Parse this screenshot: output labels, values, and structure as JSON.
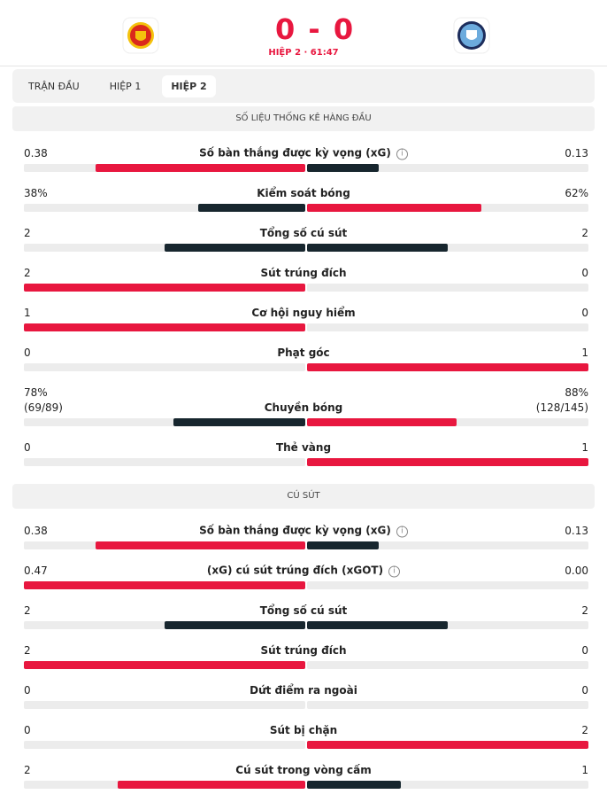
{
  "header": {
    "home_score": 0,
    "away_score": 0,
    "status": "HIỆP 2 · 61:47"
  },
  "tabs": [
    "TRẬN ĐẦU",
    "HIỆP 1",
    "HIỆP 2"
  ],
  "active_tab": 2,
  "colors": {
    "home": "#e8173f",
    "away": "#17262e",
    "track": "#ececec"
  },
  "sections": [
    {
      "title": "SỐ LIỆU THỐNG KÊ HÀNG ĐẦU",
      "stats": [
        {
          "label": "Số bàn thắng được kỳ vọng (xG)",
          "info": true,
          "home": 0.38,
          "away": 0.13
        },
        {
          "label": "Kiểm soát bóng",
          "home": 38,
          "away": 62,
          "home_label": "38%",
          "away_label": "62%"
        },
        {
          "label": "Tổng số cú sút",
          "home": 2,
          "away": 2
        },
        {
          "label": "Sút trúng đích",
          "home": 2,
          "away": 0
        },
        {
          "label": "Cơ hội nguy hiểm",
          "home": 1,
          "away": 0
        },
        {
          "label": "Phạt góc",
          "home": 0,
          "away": 1
        },
        {
          "label": "Chuyền bóng",
          "home": 78,
          "away": 88,
          "home_label": "78%",
          "away_label": "88%",
          "home_detail": "(69/89)",
          "away_detail": "(128/145)"
        },
        {
          "label": "Thẻ vàng",
          "home": 0,
          "away": 1
        }
      ]
    },
    {
      "title": "CÚ SÚT",
      "stats": [
        {
          "label": "Số bàn thắng được kỳ vọng (xG)",
          "info": true,
          "home": 0.38,
          "away": 0.13
        },
        {
          "label": "(xG) cú sút trúng đích (xGOT)",
          "info": true,
          "home": 0.47,
          "away": 0.0,
          "away_label": "0.00"
        },
        {
          "label": "Tổng số cú sút",
          "home": 2,
          "away": 2
        },
        {
          "label": "Sút trúng đích",
          "home": 2,
          "away": 0
        },
        {
          "label": "Dứt điểm ra ngoài",
          "home": 0,
          "away": 0
        },
        {
          "label": "Sút bị chặn",
          "home": 0,
          "away": 2
        },
        {
          "label": "Cú sút trong vòng cấm",
          "home": 2,
          "away": 1
        }
      ]
    }
  ]
}
